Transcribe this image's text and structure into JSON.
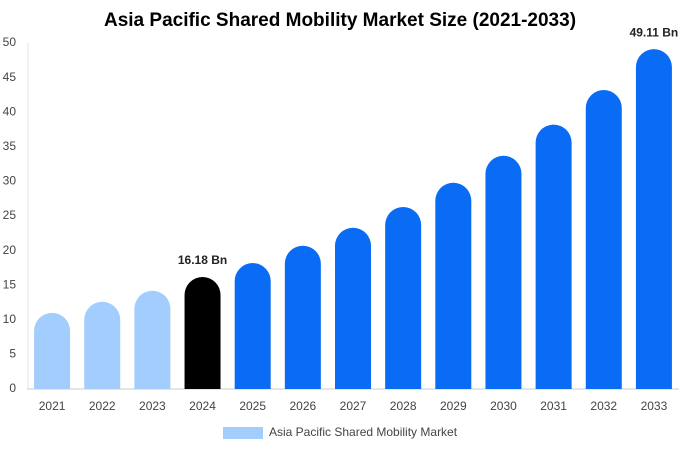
{
  "chart_data": {
    "type": "bar",
    "title": "Asia Pacific Shared Mobility Market Size (2021-2033)",
    "categories": [
      "2021",
      "2022",
      "2023",
      "2024",
      "2025",
      "2026",
      "2027",
      "2028",
      "2029",
      "2030",
      "2031",
      "2032",
      "2033"
    ],
    "series": [
      {
        "name": "Asia Pacific Shared Mobility Market",
        "color": "#a3cdfc",
        "values": [
          11.0,
          12.6,
          14.2,
          16.18,
          18.2,
          20.7,
          23.3,
          26.3,
          29.8,
          33.7,
          38.2,
          43.2,
          49.11
        ],
        "value_labels": [
          null,
          null,
          null,
          "16.18 Bn",
          null,
          null,
          null,
          null,
          null,
          null,
          null,
          null,
          "49.11 Bn"
        ],
        "bar_colors": [
          "#a3cdfc",
          "#a3cdfc",
          "#a3cdfc",
          "#000000",
          "#0a6cf5",
          "#0a6cf5",
          "#0a6cf5",
          "#0a6cf5",
          "#0a6cf5",
          "#0a6cf5",
          "#0a6cf5",
          "#0a6cf5",
          "#0a6cf5"
        ]
      }
    ],
    "ylim": [
      0,
      50
    ],
    "yticks": [
      0,
      5,
      10,
      15,
      20,
      25,
      30,
      35,
      40,
      45,
      50
    ],
    "grid": false
  }
}
